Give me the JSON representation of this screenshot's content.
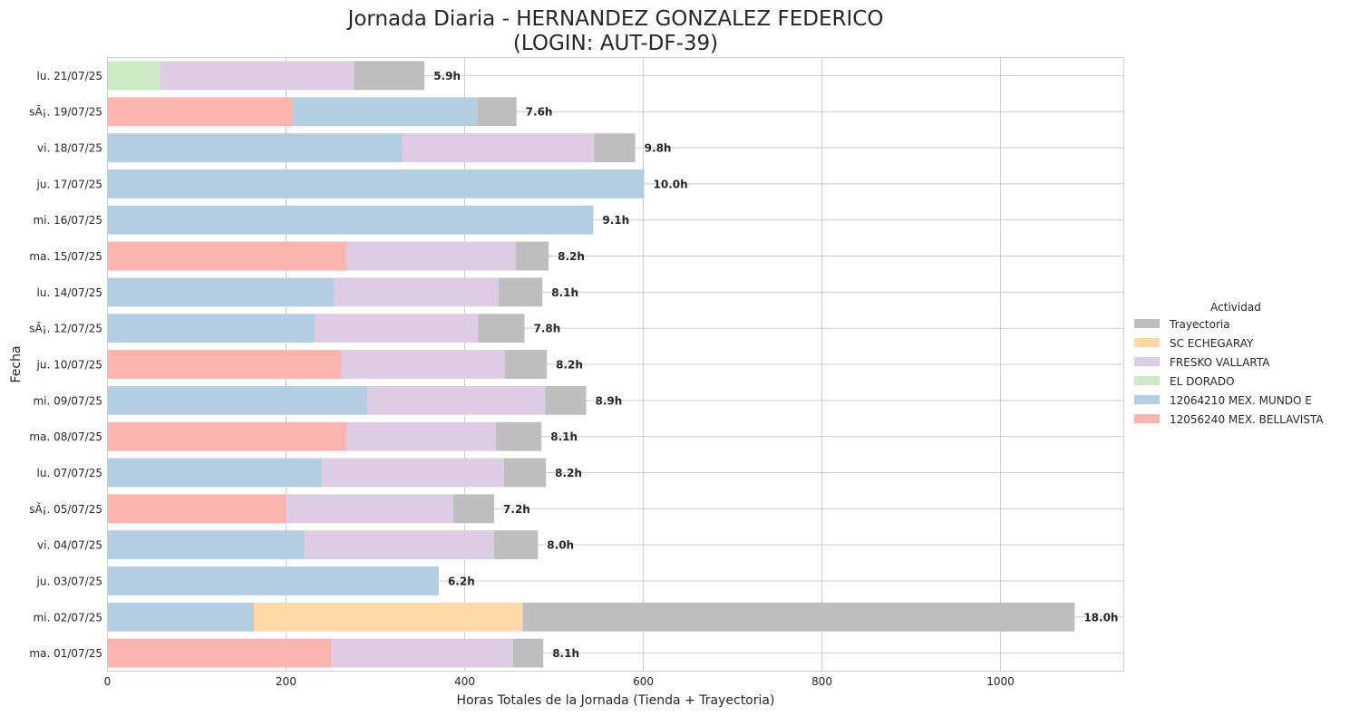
{
  "chart_data": {
    "type": "bar",
    "orientation": "horizontal",
    "stacked": true,
    "title": "Jornada Diaria - HERNANDEZ GONZALEZ FEDERICO",
    "subtitle": "(LOGIN: AUT-DF-39)",
    "xlabel": "Horas Totales de la Jornada (Tienda + Trayectoria)",
    "ylabel": "Fecha",
    "xlim": [
      0,
      1138
    ],
    "xticks": [
      0,
      200,
      400,
      600,
      800,
      1000
    ],
    "grid": true,
    "legend_title": "Actividad",
    "legend_position": "right",
    "categories": [
      "lu. 21/07/25",
      "sÃ¡. 19/07/25",
      "vi. 18/07/25",
      "ju. 17/07/25",
      "mi. 16/07/25",
      "ma. 15/07/25",
      "lu. 14/07/25",
      "sÃ¡. 12/07/25",
      "ju. 10/07/25",
      "mi. 09/07/25",
      "ma. 08/07/25",
      "lu. 07/07/25",
      "sÃ¡. 05/07/25",
      "vi. 04/07/25",
      "ju. 03/07/25",
      "mi. 02/07/25",
      "ma. 01/07/25"
    ],
    "totals": [
      "5.9h",
      "7.6h",
      "9.8h",
      "10.0h",
      "9.1h",
      "8.2h",
      "8.1h",
      "7.8h",
      "8.2h",
      "8.9h",
      "8.1h",
      "8.2h",
      "7.2h",
      "8.0h",
      "6.2h",
      "18.0h",
      "8.1h"
    ],
    "series": [
      {
        "name": "12056240 MEX. BELLAVISTA",
        "color": "#fbb4ae",
        "values": [
          0,
          208,
          0,
          0,
          0,
          268,
          0,
          0,
          262,
          0,
          268,
          0,
          200,
          0,
          0,
          0,
          251
        ]
      },
      {
        "name": "12064210 MEX. MUNDO E",
        "color": "#b3cde3",
        "values": [
          0,
          206,
          330,
          601,
          544,
          0,
          254,
          232,
          0,
          291,
          0,
          240,
          0,
          221,
          371,
          164,
          0
        ]
      },
      {
        "name": "EL DORADO",
        "color": "#ccebc5",
        "values": [
          59,
          0,
          0,
          0,
          0,
          0,
          0,
          0,
          0,
          0,
          0,
          0,
          0,
          0,
          0,
          0,
          0
        ]
      },
      {
        "name": "FRESKO VALLARTA",
        "color": "#decbe4",
        "values": [
          217,
          0,
          215,
          0,
          0,
          189,
          184,
          183,
          183,
          199,
          167,
          204,
          187,
          212,
          0,
          0,
          203
        ]
      },
      {
        "name": "SC ECHEGARAY",
        "color": "#fed9a6",
        "values": [
          0,
          0,
          0,
          0,
          0,
          0,
          0,
          0,
          0,
          0,
          0,
          0,
          0,
          0,
          0,
          301,
          0
        ]
      },
      {
        "name": "Trayectoria",
        "color": "#bebebe",
        "values": [
          79,
          44,
          46,
          0,
          0,
          37,
          49,
          52,
          47,
          46,
          51,
          47,
          46,
          49,
          0,
          618,
          34
        ]
      }
    ],
    "legend_order": [
      "Trayectoria",
      "SC ECHEGARAY",
      "FRESKO VALLARTA",
      "EL DORADO",
      "12064210 MEX. MUNDO E",
      "12056240 MEX. BELLAVISTA"
    ]
  }
}
